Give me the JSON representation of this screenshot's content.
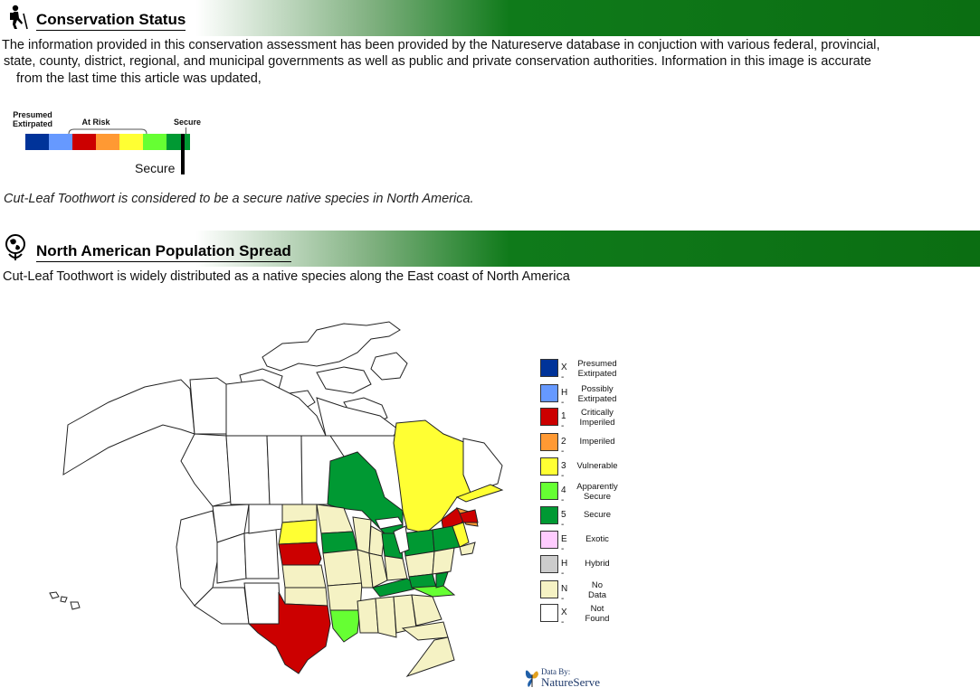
{
  "section1": {
    "title": "Conservation Status",
    "icon": "hiker-icon",
    "paragraph_line1": "The information provided in this conservation assessment has been provided by the Natureserve  database in conjuction with various federal, provincial,",
    "paragraph_line2": "state, county, district, regional, and  municipal governments as well as public and private conservation authorities. Information in this image is accurate",
    "paragraph_line3": "from the last time this article was updated,",
    "scale": {
      "label_presumed_line1": "Presumed",
      "label_presumed_line2": "Extirpated",
      "label_at_risk": "At Risk",
      "label_secure": "Secure",
      "marker_label": "Secure",
      "colors": [
        "#003399",
        "#6699ff",
        "#cc0000",
        "#ff9933",
        "#ffff33",
        "#66ff33",
        "#009933"
      ]
    },
    "statement": "Cut-Leaf Toothwort is considered to be a secure native species in North America."
  },
  "section2": {
    "title": "North American Population Spread",
    "icon": "globe-pin-icon",
    "paragraph": "Cut-Leaf Toothwort is widely distributed as a native species along the East coast of North America"
  },
  "legend": [
    {
      "code": "X -",
      "line1": "Presumed",
      "line2": "Extirpated",
      "color": "#003399"
    },
    {
      "code": "H -",
      "line1": "Possibly",
      "line2": "Extirpated",
      "color": "#6699ff"
    },
    {
      "code": "1 -",
      "line1": "Critically",
      "line2": "Imperiled",
      "color": "#cc0000"
    },
    {
      "code": "2 -",
      "line1": "Imperiled",
      "line2": "",
      "color": "#ff9933"
    },
    {
      "code": "3 -",
      "line1": "Vulnerable",
      "line2": "",
      "color": "#ffff33"
    },
    {
      "code": "4 -",
      "line1": "Apparently",
      "line2": "Secure",
      "color": "#66ff33"
    },
    {
      "code": "5 -",
      "line1": "Secure",
      "line2": "",
      "color": "#009933"
    },
    {
      "code": "E -",
      "line1": "Exotic",
      "line2": "",
      "color": "#ffccff"
    },
    {
      "code": "H -",
      "line1": "Hybrid",
      "line2": "",
      "color": "#cccccc"
    },
    {
      "code": "N -",
      "line1": "No",
      "line2": "Data",
      "color": "#f5f2c4"
    },
    {
      "code": "X -",
      "line1": "Not",
      "line2": "Found",
      "color": "#ffffff"
    }
  ],
  "logo": {
    "line1": "Data By:",
    "line2": "NatureServe"
  }
}
